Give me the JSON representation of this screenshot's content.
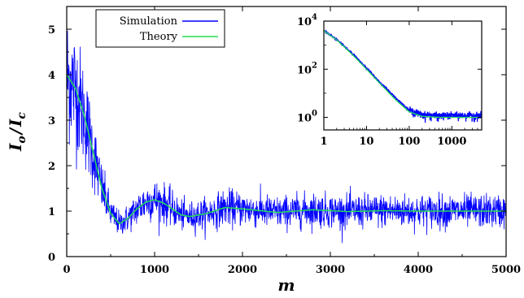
{
  "chart_data": [
    {
      "type": "line",
      "xlabel": "m",
      "ylabel": "I_o / I_c",
      "ylabel_parts": {
        "numerator": "I",
        "num_sub": "o",
        "slash": "/",
        "denominator": "I",
        "den_sub": "c"
      },
      "xlim": [
        0,
        5000
      ],
      "ylim": [
        0,
        5.5
      ],
      "xticks": [
        0,
        1000,
        2000,
        3000,
        4000,
        5000
      ],
      "yticks": [
        0,
        1,
        2,
        3,
        4,
        5
      ],
      "grid": false,
      "legend": {
        "placement": "top-left"
      },
      "series": [
        {
          "name": "Simulation",
          "color": "#0000ff",
          "note_noise_pct": 0.18,
          "x": [
            0,
            100,
            200,
            300,
            400,
            500,
            600,
            700,
            800,
            900,
            1000,
            1100,
            1200,
            1300,
            1400,
            1600,
            1800,
            2000,
            2400,
            2800,
            3200,
            3600,
            4000,
            4400,
            4800,
            5000
          ],
          "values": [
            4.0,
            3.7,
            3.1,
            2.3,
            1.5,
            0.95,
            0.72,
            0.85,
            1.05,
            1.2,
            1.25,
            1.18,
            1.05,
            0.92,
            0.88,
            0.95,
            1.08,
            1.05,
            0.97,
            1.03,
            0.99,
            1.01,
            1.0,
            1.0,
            1.0,
            1.0
          ]
        },
        {
          "name": "Theory",
          "color": "#22dd55",
          "x": [
            0,
            100,
            200,
            300,
            400,
            500,
            600,
            700,
            800,
            900,
            1000,
            1100,
            1200,
            1300,
            1400,
            1600,
            1800,
            2000,
            2400,
            2800,
            3200,
            3600,
            4000,
            4400,
            4800,
            5000
          ],
          "values": [
            4.0,
            3.7,
            3.1,
            2.3,
            1.5,
            0.95,
            0.72,
            0.85,
            1.05,
            1.2,
            1.25,
            1.18,
            1.05,
            0.92,
            0.88,
            0.95,
            1.08,
            1.05,
            0.97,
            1.03,
            0.99,
            1.01,
            1.0,
            1.0,
            1.0,
            1.0
          ]
        }
      ]
    },
    {
      "type": "line",
      "scale": "log-log",
      "xlim": [
        1,
        5000
      ],
      "ylim": [
        0.3,
        10000
      ],
      "xticks": [
        1,
        10,
        100,
        1000
      ],
      "xtick_labels": [
        "1",
        "10",
        "100",
        "1000"
      ],
      "yticks": [
        1,
        100,
        10000
      ],
      "ytick_labels": [
        {
          "base": "10",
          "exp": "0"
        },
        {
          "base": "10",
          "exp": "2"
        },
        {
          "base": "10",
          "exp": "4"
        }
      ],
      "grid": false,
      "series": [
        {
          "name": "Simulation",
          "color": "#0000ff",
          "x": [
            1,
            2,
            3,
            5,
            10,
            20,
            50,
            100,
            200,
            500,
            1000,
            2000,
            4000
          ],
          "values": [
            4000,
            1700,
            900,
            400,
            110,
            30,
            6,
            2.0,
            1.3,
            1.15,
            1.2,
            1.2,
            1.2
          ]
        },
        {
          "name": "Theory",
          "color": "#22dd55",
          "x": [
            1,
            2,
            3,
            5,
            10,
            20,
            50,
            100,
            200,
            500,
            1000,
            2000,
            4000
          ],
          "values": [
            4000,
            1650,
            850,
            360,
            100,
            27,
            5,
            1.7,
            1.1,
            1.0,
            1.0,
            1.0,
            1.0
          ]
        }
      ]
    }
  ]
}
